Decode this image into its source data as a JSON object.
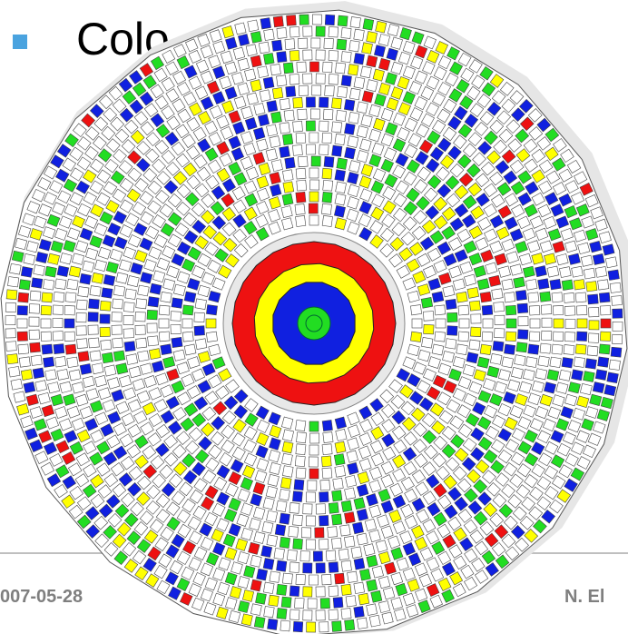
{
  "slide": {
    "title": "Colo",
    "footer_date": "007-05-28",
    "footer_author": "N. El"
  }
}
